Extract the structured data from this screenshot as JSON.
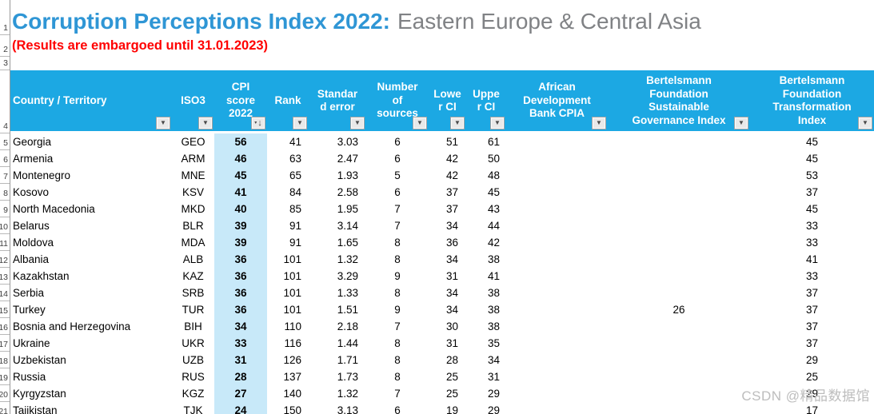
{
  "title": {
    "main": "Corruption Perceptions Index 2022:",
    "region": "Eastern Europe & Central Asia"
  },
  "embargo_notice": "(Results are embargoed until 31.01.2023)",
  "watermark": "CSDN @精品数据馆",
  "colors": {
    "header_bg": "#1CA8E3",
    "title_blue": "#2F96D5",
    "title_gray": "#808285",
    "embargo_red": "#FF0000",
    "cpi_column_bg": "#C8E9F9"
  },
  "row_numbers": [
    "1",
    "2",
    "3",
    "4",
    "5",
    "6",
    "7",
    "8",
    "9",
    "10",
    "11",
    "12",
    "13",
    "14",
    "15",
    "16",
    "17",
    "18",
    "19",
    "20",
    "21"
  ],
  "table": {
    "headers": [
      {
        "id": "country",
        "label": "Country / Territory"
      },
      {
        "id": "iso3",
        "label": "ISO3"
      },
      {
        "id": "cpi",
        "label": "CPI\nscore\n2022"
      },
      {
        "id": "rank",
        "label": "Rank"
      },
      {
        "id": "se",
        "label": "Standar\nd error"
      },
      {
        "id": "sources",
        "label": "Number\nof\nsources"
      },
      {
        "id": "lower",
        "label": "Lowe\nr CI"
      },
      {
        "id": "upper",
        "label": "Uppe\nr CI"
      },
      {
        "id": "adb",
        "label": "African\nDevelopment\nBank CPIA"
      },
      {
        "id": "sgi",
        "label": "Bertelsmann\nFoundation\nSustainable\nGovernance Index"
      },
      {
        "id": "bti",
        "label": "Bertelsmann\nFoundation\nTransformation\nIndex"
      }
    ],
    "rows": [
      {
        "country": "Georgia",
        "iso3": "GEO",
        "cpi": "56",
        "rank": "41",
        "se": "3.03",
        "sources": "6",
        "lower": "51",
        "upper": "61",
        "adb": "",
        "sgi": "",
        "bti": "45"
      },
      {
        "country": "Armenia",
        "iso3": "ARM",
        "cpi": "46",
        "rank": "63",
        "se": "2.47",
        "sources": "6",
        "lower": "42",
        "upper": "50",
        "adb": "",
        "sgi": "",
        "bti": "45"
      },
      {
        "country": "Montenegro",
        "iso3": "MNE",
        "cpi": "45",
        "rank": "65",
        "se": "1.93",
        "sources": "5",
        "lower": "42",
        "upper": "48",
        "adb": "",
        "sgi": "",
        "bti": "53"
      },
      {
        "country": "Kosovo",
        "iso3": "KSV",
        "cpi": "41",
        "rank": "84",
        "se": "2.58",
        "sources": "6",
        "lower": "37",
        "upper": "45",
        "adb": "",
        "sgi": "",
        "bti": "37"
      },
      {
        "country": "North Macedonia",
        "iso3": "MKD",
        "cpi": "40",
        "rank": "85",
        "se": "1.95",
        "sources": "7",
        "lower": "37",
        "upper": "43",
        "adb": "",
        "sgi": "",
        "bti": "45"
      },
      {
        "country": "Belarus",
        "iso3": "BLR",
        "cpi": "39",
        "rank": "91",
        "se": "3.14",
        "sources": "7",
        "lower": "34",
        "upper": "44",
        "adb": "",
        "sgi": "",
        "bti": "33"
      },
      {
        "country": "Moldova",
        "iso3": "MDA",
        "cpi": "39",
        "rank": "91",
        "se": "1.65",
        "sources": "8",
        "lower": "36",
        "upper": "42",
        "adb": "",
        "sgi": "",
        "bti": "33"
      },
      {
        "country": "Albania",
        "iso3": "ALB",
        "cpi": "36",
        "rank": "101",
        "se": "1.32",
        "sources": "8",
        "lower": "34",
        "upper": "38",
        "adb": "",
        "sgi": "",
        "bti": "41"
      },
      {
        "country": "Kazakhstan",
        "iso3": "KAZ",
        "cpi": "36",
        "rank": "101",
        "se": "3.29",
        "sources": "9",
        "lower": "31",
        "upper": "41",
        "adb": "",
        "sgi": "",
        "bti": "33"
      },
      {
        "country": "Serbia",
        "iso3": "SRB",
        "cpi": "36",
        "rank": "101",
        "se": "1.33",
        "sources": "8",
        "lower": "34",
        "upper": "38",
        "adb": "",
        "sgi": "",
        "bti": "37"
      },
      {
        "country": "Turkey",
        "iso3": "TUR",
        "cpi": "36",
        "rank": "101",
        "se": "1.51",
        "sources": "9",
        "lower": "34",
        "upper": "38",
        "adb": "",
        "sgi": "26",
        "bti": "37"
      },
      {
        "country": "Bosnia and Herzegovina",
        "iso3": "BIH",
        "cpi": "34",
        "rank": "110",
        "se": "2.18",
        "sources": "7",
        "lower": "30",
        "upper": "38",
        "adb": "",
        "sgi": "",
        "bti": "37"
      },
      {
        "country": "Ukraine",
        "iso3": "UKR",
        "cpi": "33",
        "rank": "116",
        "se": "1.44",
        "sources": "8",
        "lower": "31",
        "upper": "35",
        "adb": "",
        "sgi": "",
        "bti": "37"
      },
      {
        "country": "Uzbekistan",
        "iso3": "UZB",
        "cpi": "31",
        "rank": "126",
        "se": "1.71",
        "sources": "8",
        "lower": "28",
        "upper": "34",
        "adb": "",
        "sgi": "",
        "bti": "29"
      },
      {
        "country": "Russia",
        "iso3": "RUS",
        "cpi": "28",
        "rank": "137",
        "se": "1.73",
        "sources": "8",
        "lower": "25",
        "upper": "31",
        "adb": "",
        "sgi": "",
        "bti": "25"
      },
      {
        "country": "Kyrgyzstan",
        "iso3": "KGZ",
        "cpi": "27",
        "rank": "140",
        "se": "1.32",
        "sources": "7",
        "lower": "25",
        "upper": "29",
        "adb": "",
        "sgi": "",
        "bti": "29"
      },
      {
        "country": "Tajikistan",
        "iso3": "TJK",
        "cpi": "24",
        "rank": "150",
        "se": "3.13",
        "sources": "6",
        "lower": "19",
        "upper": "29",
        "adb": "",
        "sgi": "",
        "bti": "17"
      }
    ]
  }
}
